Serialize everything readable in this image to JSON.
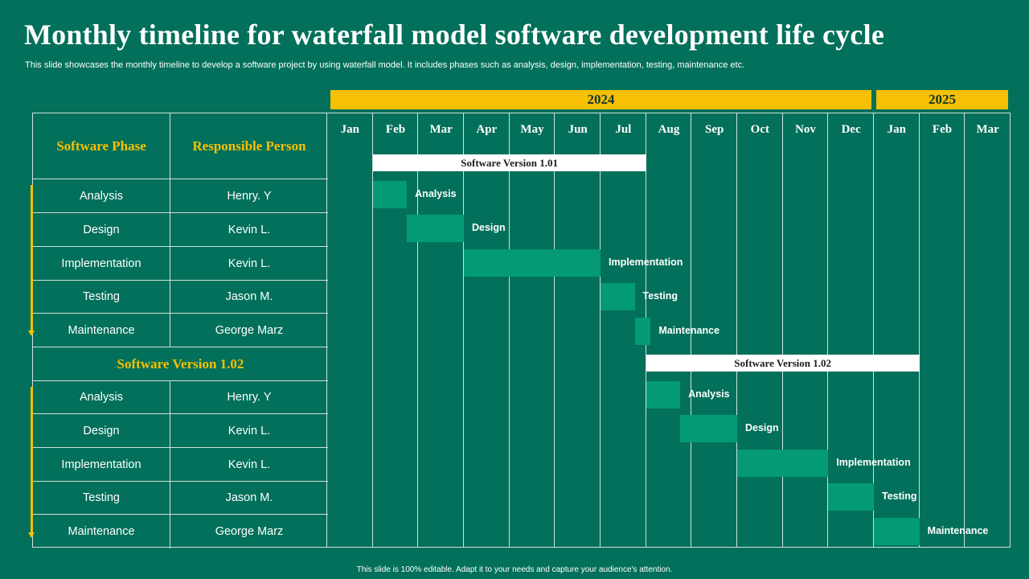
{
  "title": "Monthly timeline for waterfall model software development life cycle",
  "subtitle": "This slide showcases the monthly timeline to develop a software project by using waterfall model. It includes phases such as analysis, design, implementation, testing, maintenance etc.",
  "footer": "This slide is 100% editable.  Adapt it to your needs and capture your audience's attention.",
  "years": [
    "2024",
    "2025"
  ],
  "months": [
    "Jan",
    "Feb",
    "Mar",
    "Apr",
    "May",
    "Jun",
    "Jul",
    "Aug",
    "Sep",
    "Oct",
    "Nov",
    "Dec",
    "Jan",
    "Feb",
    "Mar"
  ],
  "table": {
    "header_phase": "Software Phase",
    "header_person": "Responsible Person",
    "version2_label": "Software Version 1.02",
    "v1_rows": [
      {
        "phase": "Analysis",
        "person": "Henry. Y"
      },
      {
        "phase": "Design",
        "person": "Kevin L."
      },
      {
        "phase": "Implementation",
        "person": "Kevin L."
      },
      {
        "phase": "Testing",
        "person": "Jason M."
      },
      {
        "phase": "Maintenance",
        "person": "George Marz"
      }
    ],
    "v2_rows": [
      {
        "phase": "Analysis",
        "person": "Henry. Y"
      },
      {
        "phase": "Design",
        "person": "Kevin L."
      },
      {
        "phase": "Implementation",
        "person": "Kevin L."
      },
      {
        "phase": "Testing",
        "person": "Jason M."
      },
      {
        "phase": "Maintenance",
        "person": "George Marz"
      }
    ]
  },
  "gantt": {
    "versions": [
      {
        "label": "Software Version 1.01",
        "start": 1,
        "end": 7
      },
      {
        "label": "Software Version 1.02",
        "start": 7,
        "end": 13
      }
    ],
    "tasks_v1": [
      {
        "label": "Analysis",
        "start": 1.0,
        "end": 1.75
      },
      {
        "label": "Design",
        "start": 1.75,
        "end": 3.0
      },
      {
        "label": "Implementation",
        "start": 3.0,
        "end": 6.0
      },
      {
        "label": "Testing",
        "start": 6.0,
        "end": 6.75
      },
      {
        "label": "Maintenance",
        "start": 6.75,
        "end": 7.1
      }
    ],
    "tasks_v2": [
      {
        "label": "Analysis",
        "start": 7.0,
        "end": 7.75
      },
      {
        "label": "Design",
        "start": 7.75,
        "end": 9.0
      },
      {
        "label": "Implementation",
        "start": 9.0,
        "end": 11.0
      },
      {
        "label": "Testing",
        "start": 11.0,
        "end": 12.0
      },
      {
        "label": "Maintenance",
        "start": 12.0,
        "end": 13.0
      }
    ]
  },
  "colors": {
    "background": "#02705a",
    "accent": "#f6c004",
    "task_bar": "#049a75",
    "version_bar": "#ffffff"
  }
}
